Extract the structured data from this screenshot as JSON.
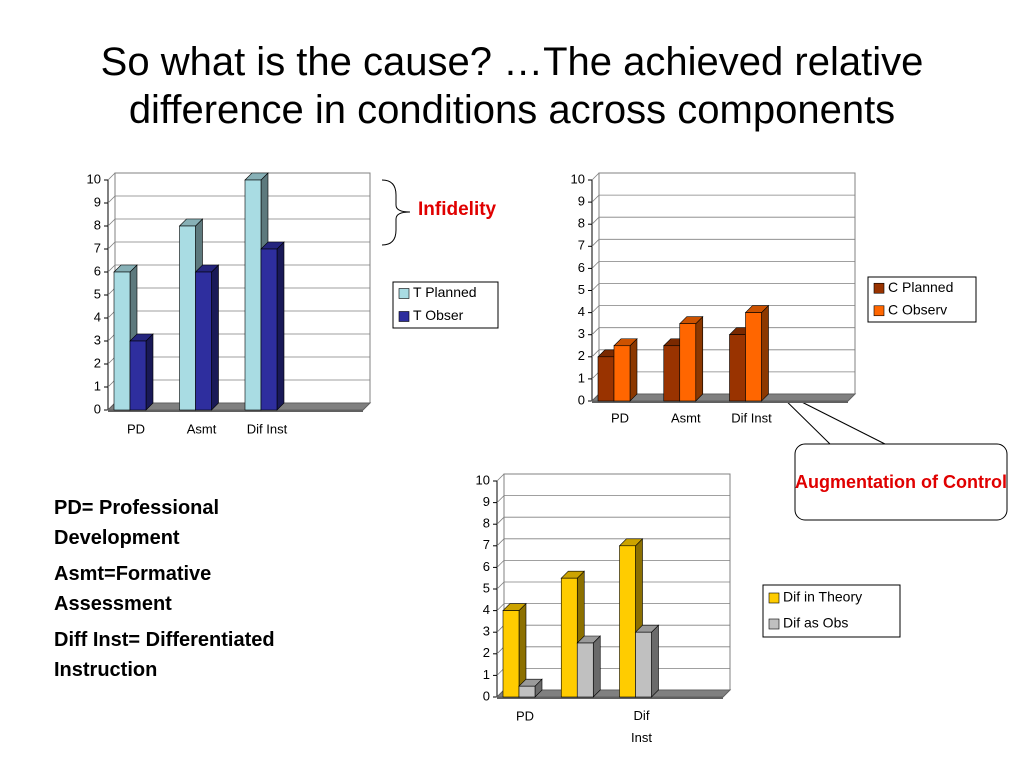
{
  "title": "So what is the cause? …The achieved relative difference in conditions across components",
  "annotations": {
    "infidelity": "Infidelity",
    "augmentation": "Augmentation of Control"
  },
  "notes": [
    "PD= Professional Development",
    "Asmt=Formative Assessment",
    "Diff Inst= Differentiated Instruction"
  ],
  "chart_data": [
    {
      "type": "bar",
      "categories": [
        "PD",
        "Asmt",
        "Dif Inst"
      ],
      "series": [
        {
          "name": "T Planned",
          "color": "#a9dce3",
          "values": [
            6,
            8,
            10
          ]
        },
        {
          "name": "T Obser",
          "color": "#2e2e9e",
          "values": [
            3,
            6,
            7
          ]
        }
      ],
      "ylim": [
        0,
        10
      ],
      "yticks": [
        0,
        1,
        2,
        3,
        4,
        5,
        6,
        7,
        8,
        9,
        10
      ],
      "grid": true,
      "legend": "right"
    },
    {
      "type": "bar",
      "categories": [
        "PD",
        "Asmt",
        "Dif Inst"
      ],
      "series": [
        {
          "name": "C Planned",
          "color": "#993300",
          "values": [
            2,
            2.5,
            3
          ]
        },
        {
          "name": "C Observ",
          "color": "#ff6600",
          "values": [
            2.5,
            3.5,
            4
          ]
        }
      ],
      "ylim": [
        0,
        10
      ],
      "yticks": [
        0,
        1,
        2,
        3,
        4,
        5,
        6,
        7,
        8,
        9,
        10
      ],
      "grid": true,
      "legend": "right"
    },
    {
      "type": "bar",
      "categories": [
        "PD",
        null,
        "Dif Inst"
      ],
      "series": [
        {
          "name": "Dif in Theory",
          "color": "#ffcc00",
          "values": [
            4,
            5.5,
            7
          ]
        },
        {
          "name": "Dif as Obs",
          "color": "#c0c0c0",
          "values": [
            0.5,
            2.5,
            3
          ]
        }
      ],
      "ylim": [
        0,
        10
      ],
      "yticks": [
        0,
        1,
        2,
        3,
        4,
        5,
        6,
        7,
        8,
        9,
        10
      ],
      "grid": true,
      "legend": "right"
    }
  ]
}
